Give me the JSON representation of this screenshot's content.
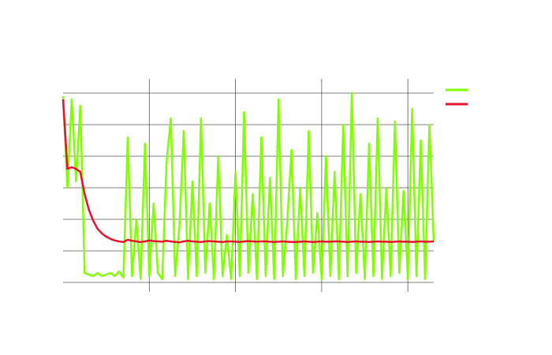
{
  "chart_data": {
    "type": "line",
    "x": [
      0,
      0.05,
      0.1,
      0.15,
      0.2,
      0.25,
      0.3,
      0.35,
      0.4,
      0.45,
      0.5,
      0.55,
      0.6,
      0.65,
      0.7,
      0.75,
      0.8,
      0.85,
      0.9,
      0.95,
      1.0,
      1.05,
      1.1,
      1.15,
      1.2,
      1.25,
      1.3,
      1.35,
      1.4,
      1.45,
      1.5,
      1.55,
      1.6,
      1.65,
      1.7,
      1.75,
      1.8,
      1.85,
      1.9,
      1.95,
      2.0,
      2.05,
      2.1,
      2.15,
      2.2,
      2.25,
      2.3,
      2.35,
      2.4,
      2.45,
      2.5,
      2.55,
      2.6,
      2.65,
      2.7,
      2.75,
      2.8,
      2.85,
      2.9,
      2.95,
      3.0,
      3.05,
      3.1,
      3.15,
      3.2,
      3.25,
      3.3,
      3.35,
      3.4,
      3.45,
      3.5,
      3.55,
      3.6,
      3.65,
      3.7,
      3.75,
      3.8,
      3.85,
      3.9,
      3.95,
      4.0,
      4.05,
      4.1,
      4.15,
      4.2,
      4.25,
      4.3
    ],
    "series": [
      {
        "color": "#7fff00",
        "values": [
          5.9,
          3.0,
          5.8,
          3.2,
          5.6,
          0.3,
          0.25,
          0.2,
          0.3,
          0.2,
          0.25,
          0.3,
          0.2,
          0.35,
          0.15,
          4.6,
          0.2,
          2.0,
          0.1,
          4.4,
          0.2,
          2.5,
          0.3,
          0.1,
          3.8,
          5.2,
          0.2,
          1.8,
          4.8,
          0.1,
          3.2,
          0.2,
          5.2,
          0.3,
          2.5,
          0.1,
          4.0,
          0.2,
          1.5,
          0.1,
          3.5,
          0.2,
          5.4,
          0.3,
          2.8,
          0.1,
          4.6,
          0.2,
          3.3,
          0.1,
          5.8,
          0.2,
          1.9,
          4.2,
          0.1,
          3.0,
          0.2,
          4.8,
          0.3,
          2.2,
          0.1,
          4.0,
          0.2,
          3.5,
          0.1,
          5.0,
          0.2,
          6.0,
          0.3,
          2.8,
          0.1,
          4.4,
          0.2,
          5.2,
          0.1,
          3.0,
          0.2,
          5.1,
          0.3,
          2.9,
          0.1,
          5.5,
          0.2,
          4.5,
          0.1,
          5.0,
          1.3
        ]
      },
      {
        "color": "#e8112d",
        "values": [
          5.8,
          3.6,
          3.65,
          3.6,
          3.5,
          2.8,
          2.3,
          1.95,
          1.7,
          1.55,
          1.45,
          1.38,
          1.33,
          1.3,
          1.28,
          1.35,
          1.32,
          1.3,
          1.28,
          1.3,
          1.33,
          1.31,
          1.3,
          1.29,
          1.32,
          1.3,
          1.28,
          1.27,
          1.3,
          1.32,
          1.3,
          1.29,
          1.28,
          1.3,
          1.31,
          1.3,
          1.29,
          1.28,
          1.3,
          1.3,
          1.29,
          1.28,
          1.3,
          1.31,
          1.3,
          1.29,
          1.3,
          1.3,
          1.29,
          1.28,
          1.29,
          1.3,
          1.29,
          1.28,
          1.28,
          1.29,
          1.3,
          1.29,
          1.28,
          1.29,
          1.3,
          1.29,
          1.29,
          1.3,
          1.3,
          1.29,
          1.28,
          1.29,
          1.3,
          1.29,
          1.29,
          1.28,
          1.29,
          1.3,
          1.29,
          1.29,
          1.28,
          1.29,
          1.3,
          1.29,
          1.29,
          1.28,
          1.29,
          1.3,
          1.29,
          1.29,
          1.3
        ]
      }
    ],
    "xlim": [
      0,
      4.3
    ],
    "xticks": [
      1,
      2,
      3,
      4
    ],
    "ylim": [
      0,
      6
    ],
    "yticks": [
      0,
      1,
      2,
      3,
      4,
      5,
      6
    ],
    "grid": true,
    "legend": "upper right"
  }
}
